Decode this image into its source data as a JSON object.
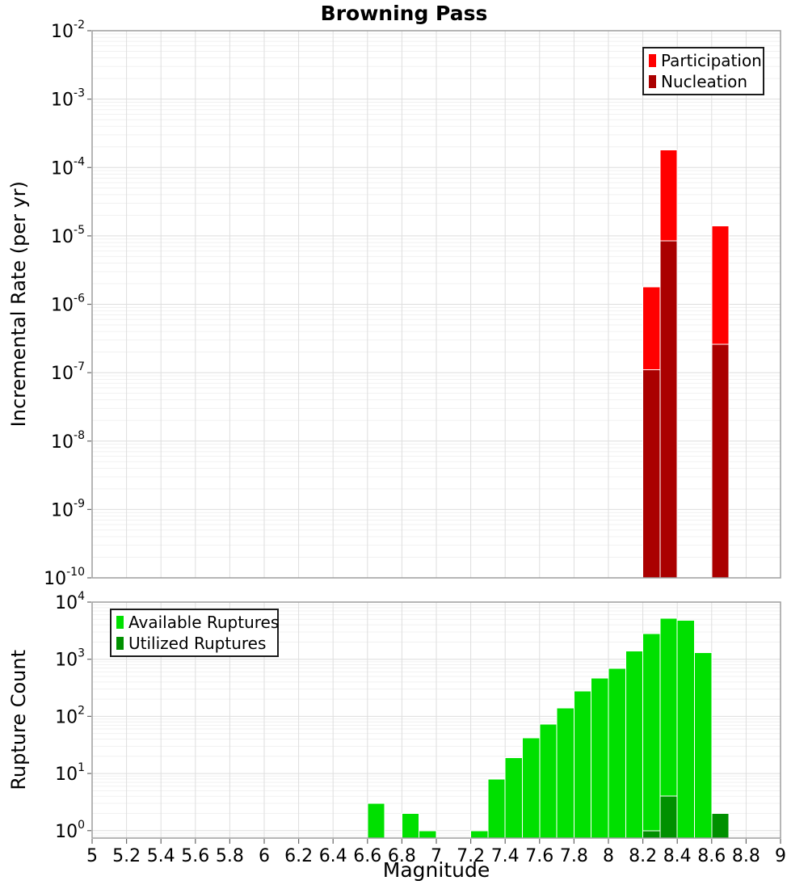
{
  "figure": {
    "title": "Browning Pass",
    "x_axis_label": "Magnitude"
  },
  "chart_data": [
    {
      "type": "bar",
      "panel": "top",
      "title": "Browning Pass",
      "ylabel": "Incremental Rate (per yr)",
      "yscale": "log",
      "xlim": [
        5,
        9
      ],
      "ylim": [
        1e-10,
        0.01
      ],
      "grid": true,
      "legend_position": "upper-right",
      "bar_width": 0.1,
      "y_ticks": [
        {
          "v": 0.01,
          "base": "10",
          "exp": "-2"
        },
        {
          "v": 0.001,
          "base": "10",
          "exp": "-3"
        },
        {
          "v": 0.0001,
          "base": "10",
          "exp": "-4"
        },
        {
          "v": 1e-05,
          "base": "10",
          "exp": "-5"
        },
        {
          "v": 1e-06,
          "base": "10",
          "exp": "-6"
        },
        {
          "v": 1e-07,
          "base": "10",
          "exp": "-7"
        },
        {
          "v": 1e-08,
          "base": "10",
          "exp": "-8"
        },
        {
          "v": 1e-09,
          "base": "10",
          "exp": "-9"
        },
        {
          "v": 1e-10,
          "base": "10",
          "exp": "-10"
        }
      ],
      "legend": [
        {
          "label": "Participation",
          "color": "#ff0000"
        },
        {
          "label": "Nucleation",
          "color": "#aa0000"
        }
      ],
      "series": [
        {
          "name": "Participation",
          "color": "#ff0000",
          "points": [
            [
              8.25,
              1.8e-06
            ],
            [
              8.35,
              0.00018
            ],
            [
              8.65,
              1.4e-05
            ]
          ]
        },
        {
          "name": "Nucleation",
          "color": "#aa0000",
          "points": [
            [
              8.25,
              1.1e-07
            ],
            [
              8.35,
              8.5e-06
            ],
            [
              8.65,
              2.6e-07
            ]
          ]
        }
      ]
    },
    {
      "type": "bar",
      "panel": "bottom",
      "xlabel": "Magnitude",
      "ylabel": "Rupture Count",
      "yscale": "log",
      "xlim": [
        5,
        9
      ],
      "ylim": [
        0.74,
        10000.0
      ],
      "grid": true,
      "legend_position": "upper-left",
      "bar_width": 0.1,
      "x_ticks": [
        {
          "v": 5,
          "label": "5"
        },
        {
          "v": 5.2,
          "label": "5.2"
        },
        {
          "v": 5.4,
          "label": "5.4"
        },
        {
          "v": 5.6,
          "label": "5.6"
        },
        {
          "v": 5.8,
          "label": "5.8"
        },
        {
          "v": 6,
          "label": "6"
        },
        {
          "v": 6.2,
          "label": "6.2"
        },
        {
          "v": 6.4,
          "label": "6.4"
        },
        {
          "v": 6.6,
          "label": "6.6"
        },
        {
          "v": 6.8,
          "label": "6.8"
        },
        {
          "v": 7,
          "label": "7"
        },
        {
          "v": 7.2,
          "label": "7.2"
        },
        {
          "v": 7.4,
          "label": "7.4"
        },
        {
          "v": 7.6,
          "label": "7.6"
        },
        {
          "v": 7.8,
          "label": "7.8"
        },
        {
          "v": 8,
          "label": "8"
        },
        {
          "v": 8.2,
          "label": "8.2"
        },
        {
          "v": 8.4,
          "label": "8.4"
        },
        {
          "v": 8.6,
          "label": "8.6"
        },
        {
          "v": 8.8,
          "label": "8.8"
        },
        {
          "v": 9,
          "label": "9"
        }
      ],
      "y_ticks": [
        {
          "v": 10000.0,
          "base": "10",
          "exp": "4"
        },
        {
          "v": 1000.0,
          "base": "10",
          "exp": "3"
        },
        {
          "v": 100.0,
          "base": "10",
          "exp": "2"
        },
        {
          "v": 10.0,
          "base": "10",
          "exp": "1"
        },
        {
          "v": 1,
          "base": "10",
          "exp": "0"
        }
      ],
      "legend": [
        {
          "label": "Available Ruptures",
          "color": "#00e000"
        },
        {
          "label": "Utilized Ruptures",
          "color": "#009000"
        }
      ],
      "series": [
        {
          "name": "Available Ruptures",
          "color": "#00e000",
          "points": [
            [
              6.65,
              3
            ],
            [
              6.85,
              2
            ],
            [
              6.95,
              1
            ],
            [
              7.25,
              1
            ],
            [
              7.35,
              8
            ],
            [
              7.45,
              19
            ],
            [
              7.55,
              42
            ],
            [
              7.65,
              73
            ],
            [
              7.75,
              140
            ],
            [
              7.85,
              280
            ],
            [
              7.95,
              470
            ],
            [
              8.05,
              690
            ],
            [
              8.15,
              1400
            ],
            [
              8.25,
              2800
            ],
            [
              8.35,
              5200
            ],
            [
              8.45,
              4800
            ],
            [
              8.55,
              1300
            ],
            [
              8.65,
              2
            ]
          ]
        },
        {
          "name": "Utilized Ruptures",
          "color": "#009000",
          "points": [
            [
              8.25,
              1
            ],
            [
              8.35,
              4
            ],
            [
              8.65,
              2
            ]
          ]
        }
      ]
    }
  ]
}
